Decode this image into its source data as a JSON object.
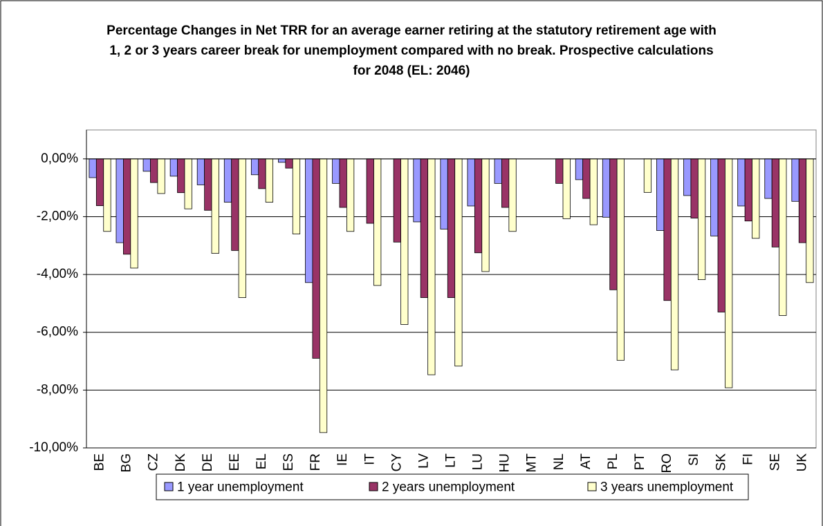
{
  "chart_data": {
    "type": "bar",
    "title": "Percentage Changes in Net TRR for an average earner retiring at the statutory retirement age with 1, 2 or 3 years career break for unemployment compared with no break. Prospective calculations for 2048 (EL: 2046)",
    "categories": [
      "BE",
      "BG",
      "CZ",
      "DK",
      "DE",
      "EE",
      "EL",
      "ES",
      "FR",
      "IE",
      "IT",
      "CY",
      "LV",
      "LT",
      "LU",
      "HU",
      "MT",
      "NL",
      "AT",
      "PL",
      "PT",
      "RO",
      "SI",
      "SK",
      "FI",
      "SE",
      "UK"
    ],
    "series": [
      {
        "name": "1 year unemployment",
        "color": "#9999ff",
        "values": [
          -0.65,
          -2.9,
          -0.43,
          -0.6,
          -0.9,
          -1.5,
          -0.55,
          -0.12,
          -4.28,
          -0.85,
          0,
          0,
          -2.18,
          -2.43,
          -1.63,
          -0.85,
          0,
          0,
          -0.72,
          -2.02,
          0,
          -2.48,
          -1.27,
          -2.67,
          -1.63,
          -1.37,
          -1.47
        ]
      },
      {
        "name": "2 years unemployment",
        "color": "#993366",
        "values": [
          -1.62,
          -3.3,
          -0.82,
          -1.17,
          -1.78,
          -3.17,
          -1.03,
          -0.32,
          -6.9,
          -1.68,
          -2.23,
          -2.88,
          -4.8,
          -4.8,
          -3.25,
          -1.68,
          0,
          -0.85,
          -1.37,
          -4.53,
          0,
          -4.9,
          -2.05,
          -5.3,
          -2.15,
          -3.05,
          -2.9
        ]
      },
      {
        "name": "3 years unemployment",
        "color": "#ffffcc",
        "values": [
          -2.51,
          -3.78,
          -1.2,
          -1.73,
          -3.27,
          -4.8,
          -1.5,
          -2.6,
          -9.47,
          -2.51,
          -4.38,
          -5.73,
          -7.47,
          -7.17,
          -3.9,
          -2.51,
          0,
          -2.07,
          -2.28,
          -6.97,
          -1.16,
          -7.3,
          -4.18,
          -7.92,
          -2.75,
          -5.42,
          -4.28
        ]
      }
    ],
    "ylim": [
      -10,
      1
    ],
    "yticks": [
      {
        "value": -10,
        "label": "-10,00%"
      },
      {
        "value": -8,
        "label": "-8,00%"
      },
      {
        "value": -6,
        "label": "-6,00%"
      },
      {
        "value": -4,
        "label": "-4,00%"
      },
      {
        "value": -2,
        "label": "-2,00%"
      },
      {
        "value": 0,
        "label": "0,00%"
      }
    ],
    "grid": true,
    "legend": "bottom"
  }
}
